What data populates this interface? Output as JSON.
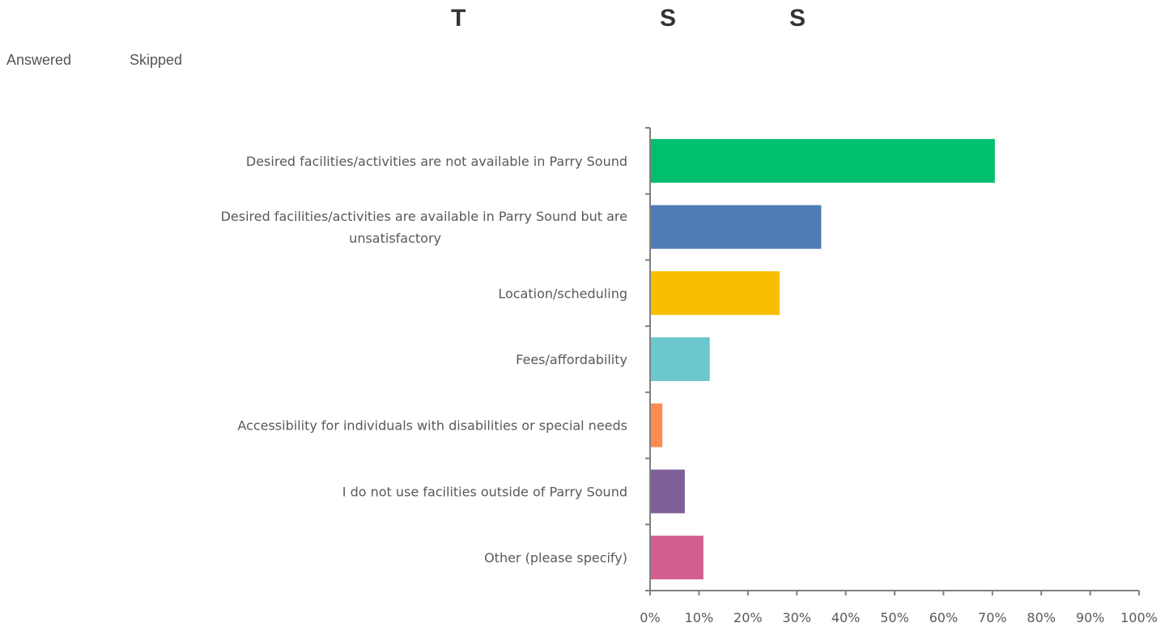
{
  "header": {
    "letters": [
      "T",
      "S",
      "S"
    ]
  },
  "stats": {
    "answered_label": "Answered",
    "skipped_label": "Skipped"
  },
  "chart_data": {
    "type": "bar",
    "orientation": "horizontal",
    "title": "",
    "xlabel": "",
    "ylabel": "",
    "categories": [
      [
        "Desired facilities/activities are not available in Parry Sound"
      ],
      [
        "Desired facilities/activities are available in Parry Sound but are",
        "unsatisfactory"
      ],
      [
        "Location/scheduling"
      ],
      [
        "Fees/affordability"
      ],
      [
        "Accessibility for individuals with disabilities or special needs"
      ],
      [
        "I do not use facilities outside of Parry Sound"
      ],
      [
        "Other (please specify)"
      ]
    ],
    "values": [
      70.5,
      35,
      26.5,
      12.2,
      2.5,
      7.1,
      10.9
    ],
    "colors": [
      "#00bf6f",
      "#507cb6",
      "#f9be00",
      "#6bc8cd",
      "#ff8b4f",
      "#7f5f98",
      "#d25f90"
    ],
    "xlim": [
      0,
      100
    ],
    "xticks": [
      "0%",
      "10%",
      "20%",
      "30%",
      "40%",
      "50%",
      "60%",
      "70%",
      "80%",
      "90%",
      "100%"
    ],
    "tick_values": [
      0,
      10,
      20,
      30,
      40,
      50,
      60,
      70,
      80,
      90,
      100
    ],
    "grid": false,
    "legend": "none"
  }
}
